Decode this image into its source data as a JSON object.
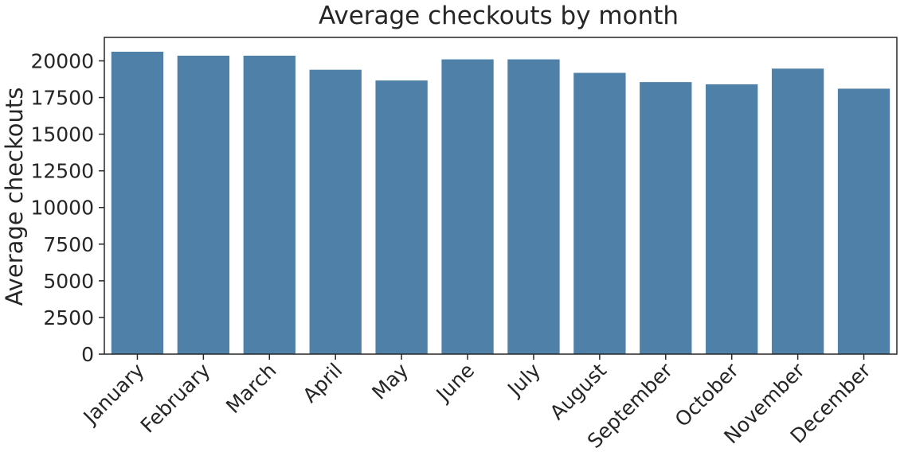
{
  "chart_data": {
    "type": "bar",
    "title": "Average checkouts by month",
    "xlabel": "",
    "ylabel": "Average checkouts",
    "categories": [
      "January",
      "February",
      "March",
      "April",
      "May",
      "June",
      "July",
      "August",
      "September",
      "October",
      "November",
      "December"
    ],
    "values": [
      20650,
      20380,
      20380,
      19420,
      18690,
      20130,
      20130,
      19210,
      18580,
      18430,
      19500,
      18130
    ],
    "ylim": [
      0,
      21600
    ],
    "yticks": [
      0,
      2500,
      5000,
      7500,
      10000,
      12500,
      15000,
      17500,
      20000
    ],
    "grid": false,
    "legend": "none",
    "bar_color": "#4f81a8"
  }
}
